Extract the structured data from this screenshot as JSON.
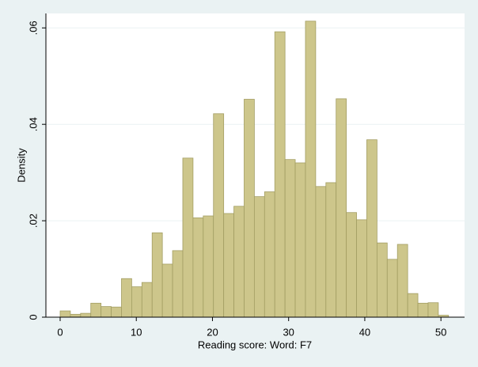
{
  "chart_data": {
    "type": "histogram",
    "xlabel": "Reading score: Word: F7",
    "ylabel": "Density",
    "bins": [
      0,
      1.342,
      2.684,
      4.026,
      5.368,
      6.711,
      8.053,
      9.395,
      10.737,
      12.079,
      13.421,
      14.763,
      16.105,
      17.447,
      18.789,
      20.132,
      21.474,
      22.816,
      24.158,
      25.5,
      26.842,
      28.184,
      29.526,
      30.868,
      32.211,
      33.553,
      34.895,
      36.237,
      37.579,
      38.921,
      40.263,
      41.605,
      42.947,
      44.289,
      45.632,
      46.974,
      48.316,
      49.658,
      51
    ],
    "values": [
      0.0013,
      0.0006,
      0.0008,
      0.0029,
      0.0022,
      0.0021,
      0.008,
      0.0063,
      0.0072,
      0.0175,
      0.011,
      0.0138,
      0.033,
      0.0206,
      0.021,
      0.0422,
      0.0215,
      0.023,
      0.0452,
      0.025,
      0.026,
      0.0592,
      0.0327,
      0.032,
      0.0614,
      0.0271,
      0.0279,
      0.0453,
      0.0217,
      0.0202,
      0.0368,
      0.0154,
      0.012,
      0.0151,
      0.0049,
      0.0029,
      0.003,
      0.0004
    ],
    "color": "#cdc68b",
    "edgecolor": "#a39e63",
    "xlim": [
      -1.87,
      53.1
    ],
    "ylim": [
      0,
      0.063
    ],
    "xticks": [
      0,
      10,
      20,
      30,
      40,
      50
    ],
    "yticks": [
      0,
      {
        "value": 0.02,
        "label": ".02"
      },
      {
        "value": 0.04,
        "label": ".04"
      },
      {
        "value": 0.06,
        "label": ".06"
      }
    ],
    "grid": true
  }
}
